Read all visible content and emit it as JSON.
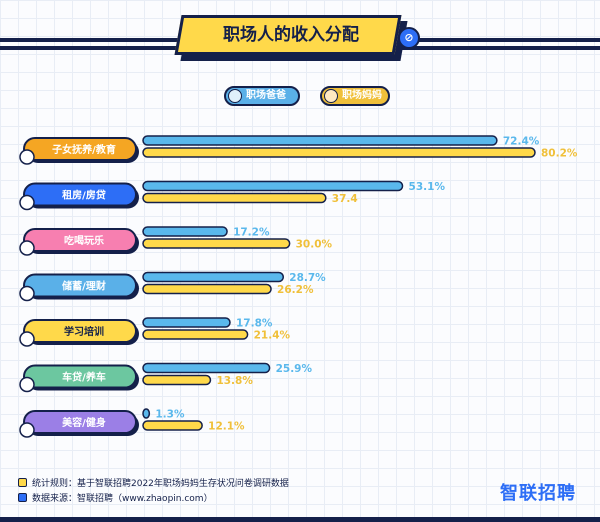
{
  "title": "职场人的收入分配",
  "title_badge": "⊘",
  "legend": {
    "dad": "职场爸爸",
    "mom": "职场妈妈"
  },
  "footer": {
    "rule": "统计规则：基于智联招聘2022年职场妈妈生存状况问卷调研数据",
    "source": "数据来源：智联招聘（www.zhaopin.com）"
  },
  "logo": "智联招聘",
  "chart_data": {
    "type": "bar",
    "orientation": "horizontal",
    "categories": [
      "子女抚养/教育",
      "租房/房贷",
      "吃喝玩乐",
      "储蓄/理财",
      "学习培训",
      "车贷/养车",
      "美容/健身"
    ],
    "series": [
      {
        "name": "职场爸爸",
        "values": [
          72.4,
          53.1,
          17.2,
          28.7,
          17.8,
          25.9,
          1.3
        ],
        "labels": [
          "72.4%",
          "53.1%",
          "17.2%",
          "28.7%",
          "17.8%",
          "25.9%",
          "1.3%"
        ]
      },
      {
        "name": "职场妈妈",
        "values": [
          80.2,
          37.4,
          30.0,
          26.2,
          21.4,
          13.8,
          12.1
        ],
        "labels": [
          "80.2%",
          "37.4",
          "30.0%",
          "26.2%",
          "21.4%",
          "13.8%",
          "12.1%"
        ]
      }
    ],
    "xlim": [
      0,
      80.2
    ],
    "grid": true,
    "legend_position": "top-center",
    "category_colors": [
      "#f5a623",
      "#2d6ef6",
      "#f77fb0",
      "#5ab0e8",
      "#ffd94a",
      "#6cc7a0",
      "#9b7fe6"
    ],
    "series_colors": [
      "#5ab8ec",
      "#ffd94a"
    ],
    "label_colors": [
      "#5ab8ec",
      "#f0c03a"
    ],
    "category_icons": [
      "scissors-pencil-icon",
      "house-icon",
      "cup-icon",
      "piggy-bank-icon",
      "books-icon",
      "car-icon",
      "dumbbell-icon"
    ]
  }
}
